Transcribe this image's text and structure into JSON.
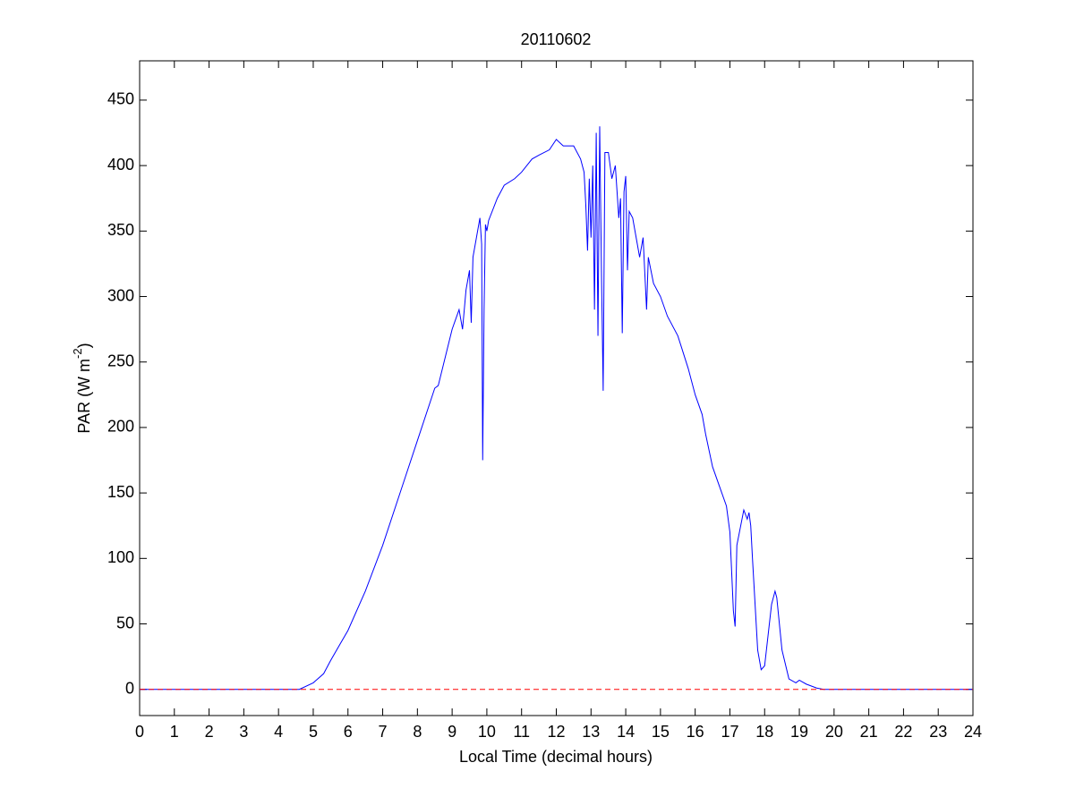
{
  "chart_data": {
    "type": "line",
    "title": "20110602",
    "xlabel": "Local Time (decimal hours)",
    "ylabel": [
      "PAR (W m",
      "-2",
      ")"
    ],
    "xlim": [
      0,
      24
    ],
    "xticks": [
      0,
      1,
      2,
      3,
      4,
      5,
      6,
      7,
      8,
      9,
      10,
      11,
      12,
      13,
      14,
      15,
      16,
      17,
      18,
      19,
      20,
      21,
      22,
      23,
      24
    ],
    "ylim": [
      -20,
      480
    ],
    "yticks": [
      0,
      50,
      100,
      150,
      200,
      250,
      300,
      350,
      400,
      450
    ],
    "hlines": [
      {
        "y": 0,
        "color": "#ff0000",
        "style": "dashed"
      }
    ],
    "series": [
      {
        "color": "#0000ff",
        "x": [
          0,
          4.6,
          5.0,
          5.3,
          5.5,
          6,
          6.5,
          7,
          7.5,
          8,
          8.5,
          8.6,
          9,
          9.2,
          9.3,
          9.4,
          9.5,
          9.55,
          9.6,
          9.8,
          9.85,
          9.88,
          9.92,
          9.96,
          10.0,
          10.05,
          10.3,
          10.5,
          10.8,
          11,
          11.3,
          11.5,
          11.8,
          12,
          12.2,
          12.5,
          12.7,
          12.8,
          12.85,
          12.9,
          12.95,
          13.0,
          13.05,
          13.1,
          13.15,
          13.2,
          13.25,
          13.3,
          13.35,
          13.4,
          13.5,
          13.6,
          13.7,
          13.8,
          13.85,
          13.9,
          13.95,
          14.0,
          14.05,
          14.1,
          14.2,
          14.3,
          14.4,
          14.5,
          14.6,
          14.65,
          14.8,
          15,
          15.2,
          15.5,
          15.8,
          16,
          16.2,
          16.3,
          16.5,
          16.7,
          16.9,
          17.0,
          17.1,
          17.15,
          17.2,
          17.4,
          17.5,
          17.55,
          17.6,
          17.65,
          17.8,
          17.9,
          18.0,
          18.2,
          18.3,
          18.35,
          18.5,
          18.7,
          18.9,
          19.0,
          19.2,
          19.5,
          19.7,
          24
        ],
        "values": [
          0,
          0,
          5,
          12,
          22,
          45,
          75,
          110,
          150,
          190,
          230,
          232,
          275,
          290,
          275,
          305,
          320,
          280,
          330,
          360,
          340,
          175,
          290,
          355,
          350,
          358,
          375,
          385,
          390,
          395,
          405,
          408,
          412,
          420,
          415,
          415,
          405,
          395,
          370,
          335,
          390,
          345,
          400,
          290,
          425,
          270,
          430,
          320,
          228,
          410,
          410,
          390,
          400,
          360,
          375,
          272,
          380,
          392,
          320,
          365,
          360,
          345,
          330,
          345,
          290,
          330,
          310,
          300,
          285,
          270,
          245,
          225,
          210,
          195,
          170,
          155,
          140,
          120,
          60,
          48,
          110,
          137,
          130,
          135,
          125,
          100,
          30,
          15,
          18,
          65,
          75,
          70,
          30,
          8,
          5,
          7,
          4,
          1,
          0,
          0
        ]
      }
    ]
  }
}
